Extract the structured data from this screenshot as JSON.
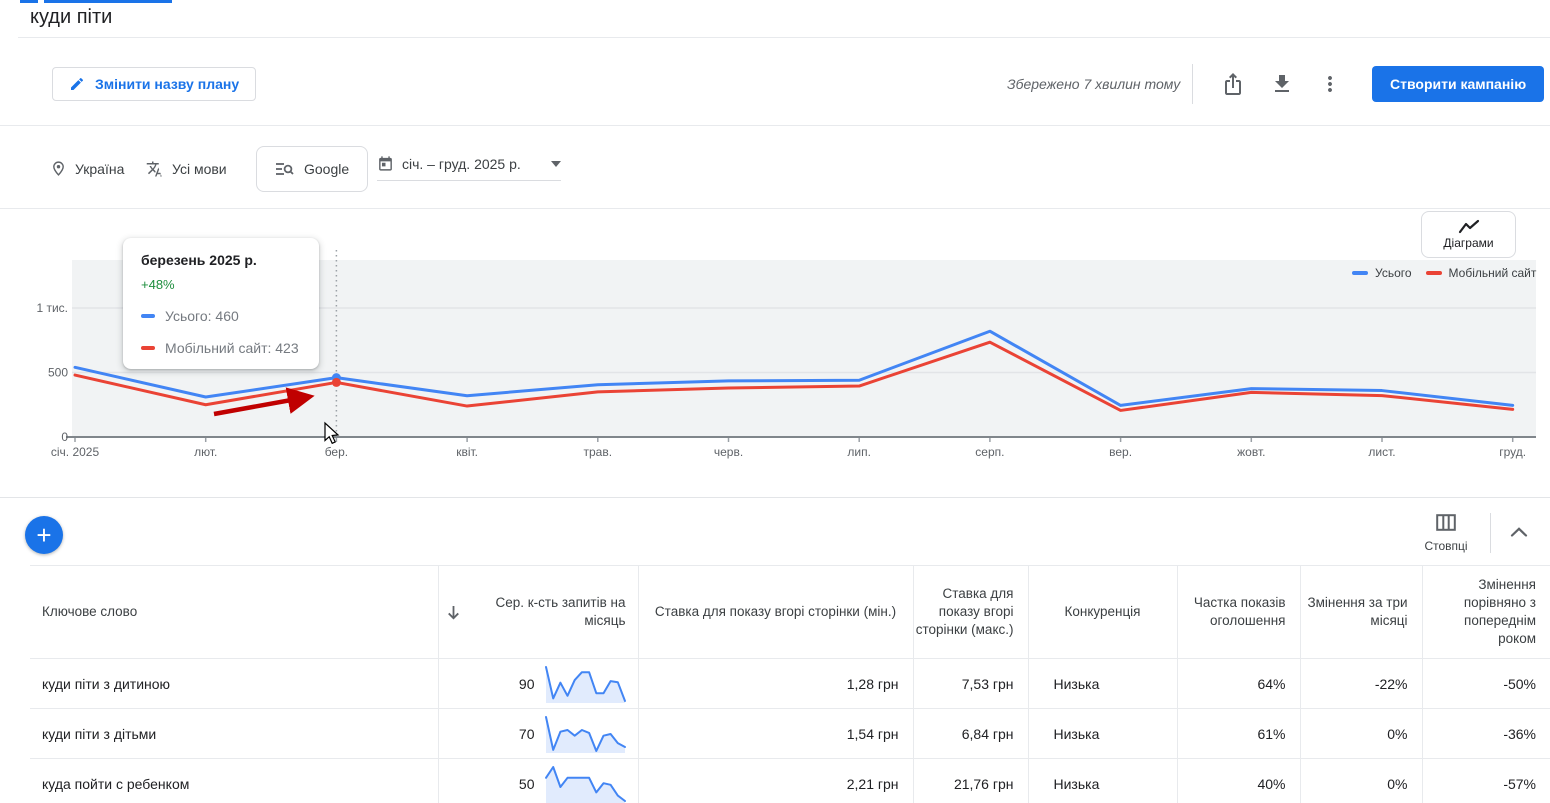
{
  "page": {
    "title": "куди піти"
  },
  "toolbar": {
    "edit_plan_label": "Змінити назву плану",
    "saved_status": "Збережено 7 хвилин тому",
    "create_campaign_label": "Створити кампанію"
  },
  "filters": {
    "location": "Україна",
    "language": "Усі мови",
    "network": "Google",
    "date_range": "січ. – груд. 2025 р."
  },
  "chart": {
    "toggle_label": "Діаграми",
    "legend": [
      {
        "label": "Усього",
        "color": "#4285f4"
      },
      {
        "label": "Мобільний сайт",
        "color": "#ea4335"
      }
    ],
    "tooltip": {
      "title": "березень 2025 р.",
      "change": "+48%",
      "rows": [
        {
          "label": "Усього: 460",
          "color": "#4285f4"
        },
        {
          "label": "Мобільний сайт: 423",
          "color": "#ea4335"
        }
      ]
    }
  },
  "chart_data": {
    "type": "line",
    "title": "",
    "x": [
      "січ. 2025",
      "лют.",
      "бер.",
      "квіт.",
      "трав.",
      "черв.",
      "лип.",
      "серп.",
      "вер.",
      "жовт.",
      "лист.",
      "груд."
    ],
    "series": [
      {
        "name": "Усього",
        "color": "#4285f4",
        "values": [
          540,
          310,
          460,
          320,
          405,
          435,
          440,
          820,
          245,
          375,
          360,
          245
        ]
      },
      {
        "name": "Мобільний сайт",
        "color": "#ea4335",
        "values": [
          480,
          250,
          423,
          240,
          350,
          380,
          395,
          735,
          206,
          346,
          321,
          214
        ]
      }
    ],
    "y_ticks": [
      {
        "value": 1000,
        "label": "1 тис."
      },
      {
        "value": 500,
        "label": "500"
      },
      {
        "value": 0,
        "label": "0"
      }
    ],
    "ylim": [
      0,
      1350
    ],
    "grid": true,
    "legend_position": "top-right",
    "highlight": {
      "x_index": 2,
      "note": "+48%"
    }
  },
  "table": {
    "columns_label": "Стовпці",
    "add_label": "+",
    "headers": {
      "keyword": "Ключове слово",
      "volume": "Сер. к-сть запитів на місяць",
      "bid_min": "Ставка для показу вгорі сторінки (мін.)",
      "bid_max": "Ставка для показу вгорі сторінки (макс.)",
      "competition": "Конкуренція",
      "impr_share": "Частка показів оголошення",
      "change_3m": "Змінення за три місяці",
      "change_yoy": "Змінення порівняно з попереднім роком"
    },
    "rows": [
      {
        "keyword": "куди піти з дитиною",
        "volume": "90",
        "spark": [
          95,
          35,
          65,
          40,
          70,
          85,
          85,
          45,
          45,
          68,
          66,
          30
        ],
        "bid_min": "1,28 грн",
        "bid_max": "7,53 грн",
        "competition": "Низька",
        "impr_share": "64%",
        "change_3m": "-22%",
        "change_yoy": "-50%"
      },
      {
        "keyword": "куди піти з дітьми",
        "volume": "70",
        "spark": [
          88,
          30,
          62,
          65,
          55,
          65,
          60,
          28,
          55,
          58,
          42,
          35
        ],
        "bid_min": "1,54 грн",
        "bid_max": "6,84 грн",
        "competition": "Низька",
        "impr_share": "61%",
        "change_3m": "0%",
        "change_yoy": "-36%"
      },
      {
        "keyword": "куда пойти с ребенком",
        "volume": "50",
        "spark": [
          55,
          75,
          38,
          55,
          55,
          55,
          55,
          28,
          45,
          42,
          22,
          12
        ],
        "bid_min": "2,21 грн",
        "bid_max": "21,76 грн",
        "competition": "Низька",
        "impr_share": "40%",
        "change_3m": "0%",
        "change_yoy": "-57%"
      }
    ]
  }
}
